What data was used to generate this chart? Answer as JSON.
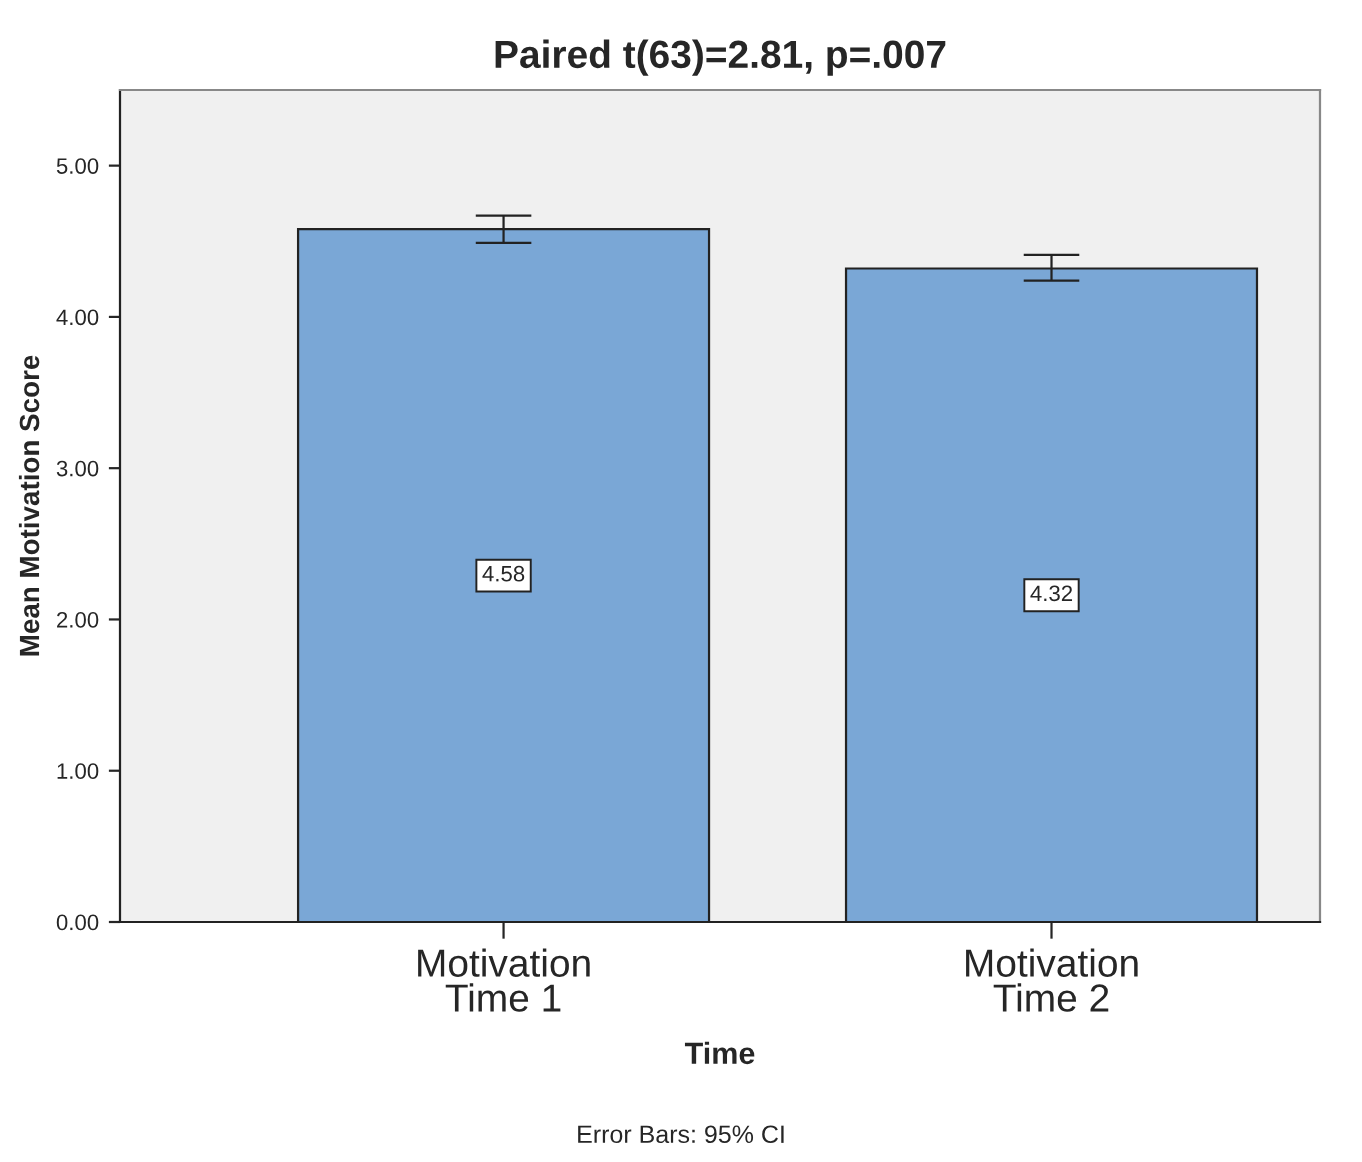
{
  "chart_data": {
    "type": "bar",
    "title": "Paired t(63)=2.81, p=.007",
    "xlabel": "Time",
    "ylabel": "Mean Motivation Score",
    "categories": [
      "Motivation\nTime 1",
      "Motivation\nTime 2"
    ],
    "values": [
      4.58,
      4.32
    ],
    "color": "#7aa7d6",
    "errors": [
      [
        4.49,
        4.67
      ],
      [
        4.24,
        4.41
      ]
    ],
    "data_labels": true,
    "ylim": [
      0,
      5.5
    ],
    "yticks": [
      {
        "value": 0,
        "label": "0.00"
      },
      {
        "value": 1,
        "label": "1.00"
      },
      {
        "value": 2,
        "label": "2.00"
      },
      {
        "value": 3,
        "label": "3.00"
      },
      {
        "value": 4,
        "label": "4.00"
      },
      {
        "value": 5,
        "label": "5.00"
      }
    ],
    "annotations": [
      "Error Bars: 95% CI"
    ]
  }
}
